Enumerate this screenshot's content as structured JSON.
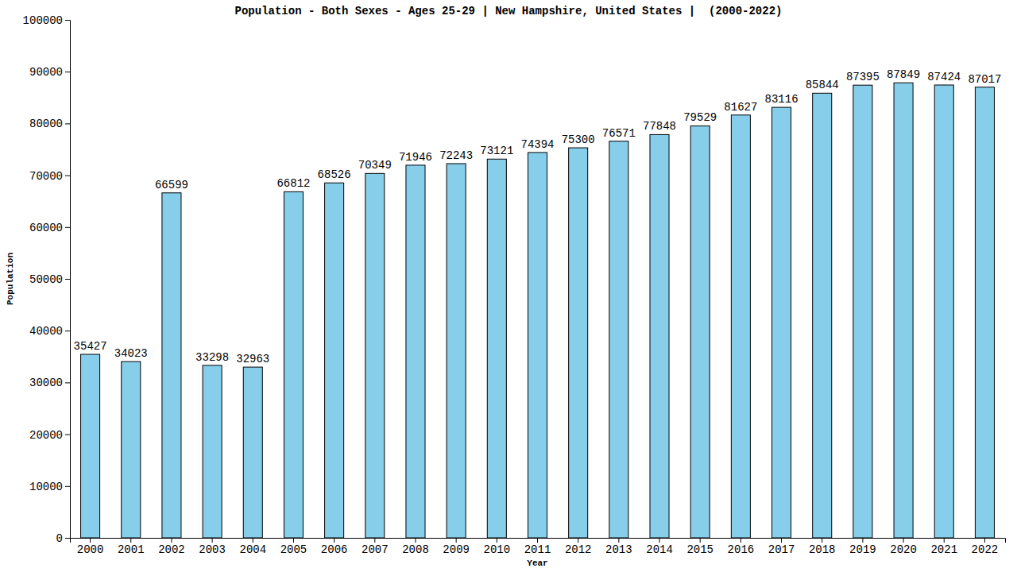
{
  "chart_data": {
    "type": "bar",
    "title": "Population - Both Sexes - Ages 25-29 | New Hampshire, United States |  (2000-2022)",
    "x_label": "Year",
    "y_label": "Population",
    "categories": [
      "2000",
      "2001",
      "2002",
      "2003",
      "2004",
      "2005",
      "2006",
      "2007",
      "2008",
      "2009",
      "2010",
      "2011",
      "2012",
      "2013",
      "2014",
      "2015",
      "2016",
      "2017",
      "2018",
      "2019",
      "2020",
      "2021",
      "2022"
    ],
    "values": [
      35427,
      34023,
      66599,
      33298,
      32963,
      66812,
      68526,
      70349,
      71946,
      72243,
      73121,
      74394,
      75300,
      76571,
      77848,
      79529,
      81627,
      83116,
      85844,
      87395,
      87849,
      87424,
      87017
    ],
    "color": "#87ceeb",
    "ylim": [
      0,
      100000
    ],
    "yticks": [
      0,
      10000,
      20000,
      30000,
      40000,
      50000,
      60000,
      70000,
      80000,
      90000,
      100000
    ],
    "grid": false,
    "data_labels": true
  }
}
